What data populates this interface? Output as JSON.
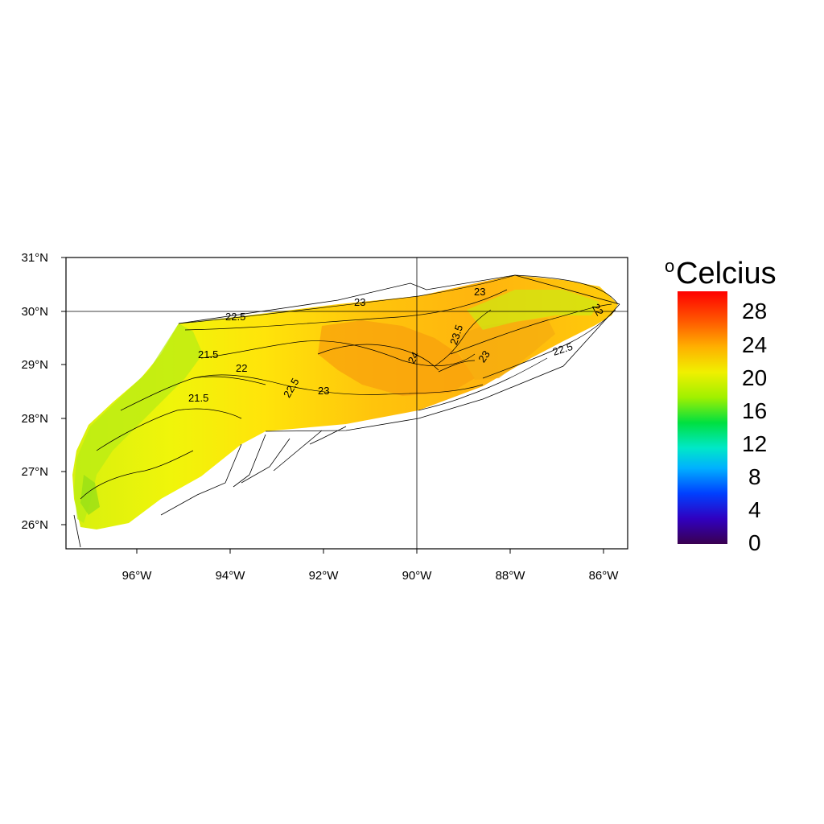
{
  "map": {
    "lat_ticks": [
      "31°N",
      "30°N",
      "29°N",
      "28°N",
      "27°N",
      "26°N"
    ],
    "lon_ticks": [
      "96°W",
      "94°W",
      "92°W",
      "90°W",
      "88°W",
      "86°W"
    ],
    "contour_labels": [
      "22.5",
      "23",
      "23",
      "22",
      "21.5",
      "22",
      "22.5",
      "23",
      "21.5",
      "24",
      "23.5",
      "23",
      "22.5"
    ],
    "colors": {
      "warm": "#f6a10c",
      "mid": "#ffd20a",
      "cool": "#e9f50c",
      "cold": "#a8ea12"
    }
  },
  "legend": {
    "title_sup": "o",
    "title": "Celcius",
    "ticks": [
      "28",
      "24",
      "20",
      "16",
      "12",
      "8",
      "4",
      "0"
    ],
    "colors": [
      "#ff0000",
      "#ff8c00",
      "#ffe000",
      "#c8ff00",
      "#00e000",
      "#00e8e8",
      "#0060ff",
      "#2000c8",
      "#3a0060"
    ]
  }
}
